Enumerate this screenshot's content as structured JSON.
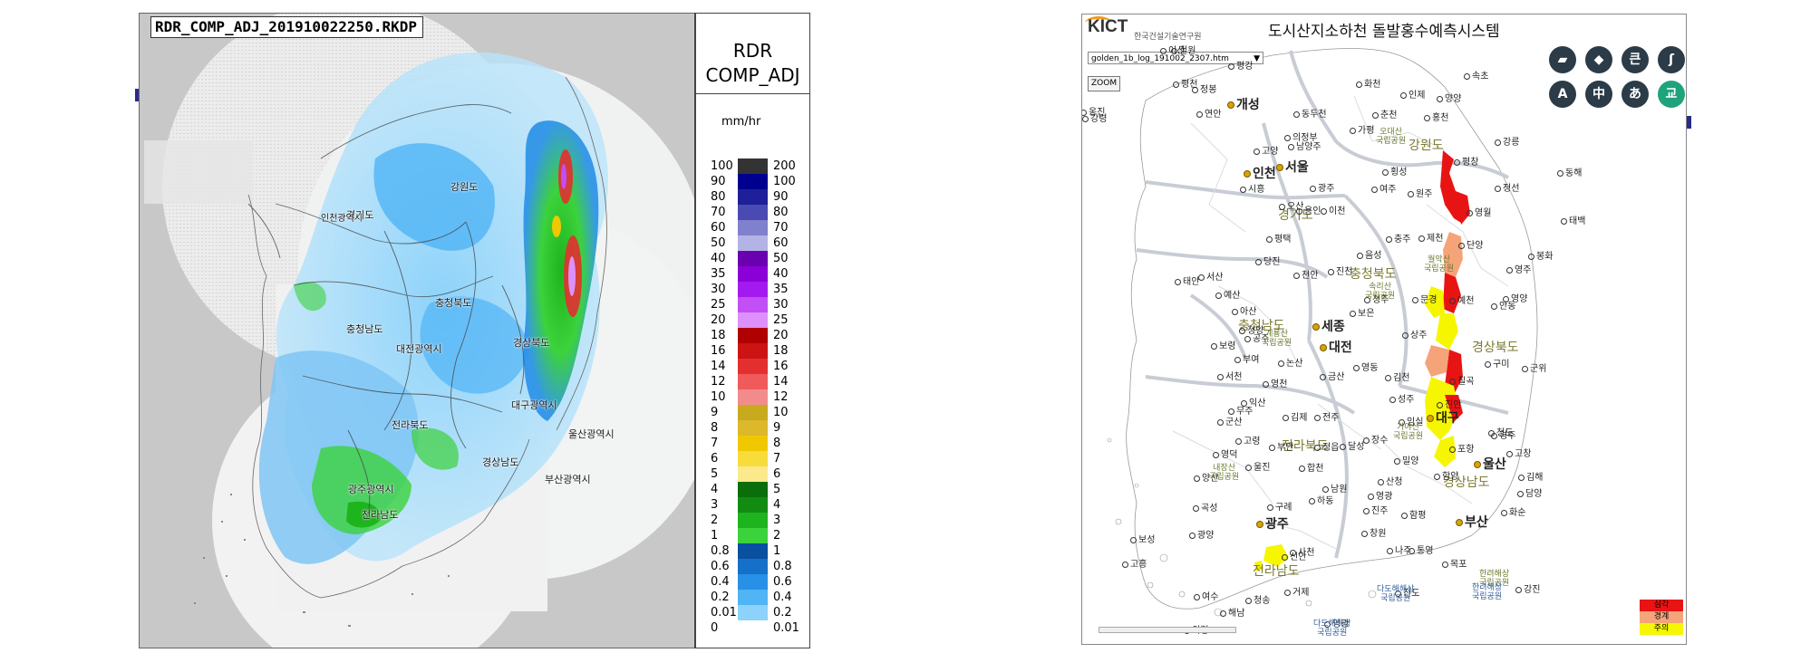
{
  "radar": {
    "title": "RDR_COMP_ADJ_201910022250.RKDP",
    "region_labels": [
      "강원도",
      "경기도",
      "인천광역시",
      "충청북도",
      "충청남도",
      "대전광역시",
      "경상북도",
      "대구광역시",
      "전라북도",
      "울산광역시",
      "경상남도",
      "부산광역시",
      "광주광역시",
      "전라남도"
    ]
  },
  "legend": {
    "title_line1": "RDR",
    "title_line2": "COMP_ADJ",
    "unit": "mm/hr",
    "rows": [
      {
        "left": "100",
        "right": "200",
        "color": "#333333"
      },
      {
        "left": "90",
        "right": "100",
        "color": "#000090"
      },
      {
        "left": "80",
        "right": "90",
        "color": "#1f1f99"
      },
      {
        "left": "70",
        "right": "80",
        "color": "#4a4ab3"
      },
      {
        "left": "60",
        "right": "70",
        "color": "#8080cc"
      },
      {
        "left": "50",
        "right": "60",
        "color": "#b3b3e6"
      },
      {
        "left": "40",
        "right": "50",
        "color": "#6a00b0"
      },
      {
        "left": "35",
        "right": "40",
        "color": "#8b00d6"
      },
      {
        "left": "30",
        "right": "35",
        "color": "#a31af0"
      },
      {
        "left": "25",
        "right": "30",
        "color": "#c14ff5"
      },
      {
        "left": "20",
        "right": "25",
        "color": "#dd90fa"
      },
      {
        "left": "18",
        "right": "20",
        "color": "#b00000"
      },
      {
        "left": "16",
        "right": "18",
        "color": "#cc1414"
      },
      {
        "left": "14",
        "right": "16",
        "color": "#e32f2f"
      },
      {
        "left": "12",
        "right": "14",
        "color": "#f05a5a"
      },
      {
        "left": "10",
        "right": "12",
        "color": "#f28c8c"
      },
      {
        "left": "9",
        "right": "10",
        "color": "#c8aa1e"
      },
      {
        "left": "8",
        "right": "9",
        "color": "#dcb82a"
      },
      {
        "left": "7",
        "right": "8",
        "color": "#f0c800"
      },
      {
        "left": "6",
        "right": "7",
        "color": "#f7dc3c"
      },
      {
        "left": "5",
        "right": "6",
        "color": "#fbe98c"
      },
      {
        "left": "4",
        "right": "5",
        "color": "#0a6e0a"
      },
      {
        "left": "3",
        "right": "4",
        "color": "#118c11"
      },
      {
        "left": "2",
        "right": "3",
        "color": "#1eb41e"
      },
      {
        "left": "1",
        "right": "2",
        "color": "#3cd23c"
      },
      {
        "left": "0.8",
        "right": "1",
        "color": "#0a50a0"
      },
      {
        "left": "0.6",
        "right": "0.8",
        "color": "#1470c8"
      },
      {
        "left": "0.4",
        "right": "0.6",
        "color": "#2890e6"
      },
      {
        "left": "0.2",
        "right": "0.4",
        "color": "#50b4f5"
      },
      {
        "left": "0.01",
        "right": "0.2",
        "color": "#8cd2fa"
      },
      {
        "left": "0",
        "right": "0.01",
        "color": "#ffffff"
      }
    ]
  },
  "flood": {
    "logo": "KICT",
    "logo_sub": "한국건설기술연구원",
    "title": "도시산지소하천 돌발홍수예측시스템",
    "log_file": "golden_1b_log_191002_2307.htm",
    "zoom_label": "ZOOM",
    "tools": [
      "▰",
      "◆",
      "큰",
      "ʃ",
      "A",
      "中",
      "あ",
      "교"
    ],
    "provinces": [
      "강원도",
      "경기도",
      "충청북도",
      "충청남도",
      "경상북도",
      "전라북도",
      "경상남도",
      "전라남도"
    ],
    "cities": [
      "개성",
      "서울",
      "인천",
      "세종",
      "대전",
      "대구",
      "울산",
      "부산",
      "광주"
    ],
    "places": [
      "이산",
      "철원",
      "평강",
      "정봉",
      "평천",
      "연안",
      "옹진",
      "강령",
      "화천",
      "인제",
      "양양",
      "속초",
      "동두천",
      "춘천",
      "가평",
      "의정부",
      "남양주",
      "고양",
      "홍천",
      "강릉",
      "횡성",
      "평창",
      "정선",
      "동해",
      "시흥",
      "광주",
      "여주",
      "원주",
      "영월",
      "오산",
      "용인",
      "이천",
      "태백",
      "평택",
      "제천",
      "충주",
      "단양",
      "당진",
      "봉화",
      "태안",
      "서산",
      "천안",
      "진천",
      "음성",
      "영주",
      "예산",
      "청주",
      "보은",
      "문경",
      "예천",
      "안동",
      "아산",
      "청양",
      "공주",
      "상주",
      "보령",
      "부여",
      "논산",
      "영동",
      "구미",
      "군위",
      "서천",
      "금산",
      "김천",
      "칠곡",
      "영천",
      "익산",
      "무주",
      "성주",
      "군산",
      "김제",
      "전주",
      "진안",
      "고령",
      "부안",
      "정읍",
      "임실",
      "장수",
      "달성",
      "청도",
      "경주",
      "포항",
      "영덕",
      "울진",
      "합천",
      "밀양",
      "고창",
      "남원",
      "함양",
      "양산",
      "산청",
      "김해",
      "영광",
      "담양",
      "곡성",
      "구례",
      "하동",
      "진주",
      "창원",
      "함평",
      "화순",
      "광양",
      "사천",
      "나주",
      "통영",
      "신안",
      "목포",
      "보성",
      "여수",
      "거제",
      "진도",
      "강진",
      "고흥",
      "해남",
      "영광",
      "의령",
      "청송",
      "영양"
    ],
    "parks": [
      "오대산\n국립공원",
      "월악산\n국립공원",
      "속리산\n국립공원",
      "계룡산\n국립공원",
      "가야산\n국립공원",
      "내장산\n국립공원",
      "한려해상\n국립공원"
    ],
    "seas": [
      "다도해해상\n국립공원",
      "한려해상\n국립공원",
      "다도해해상\n국립공원"
    ],
    "alert_levels": [
      {
        "label": "심각",
        "color": "#e81414"
      },
      {
        "label": "경계",
        "color": "#f5a47a"
      },
      {
        "label": "주의",
        "color": "#f6f600"
      }
    ]
  }
}
